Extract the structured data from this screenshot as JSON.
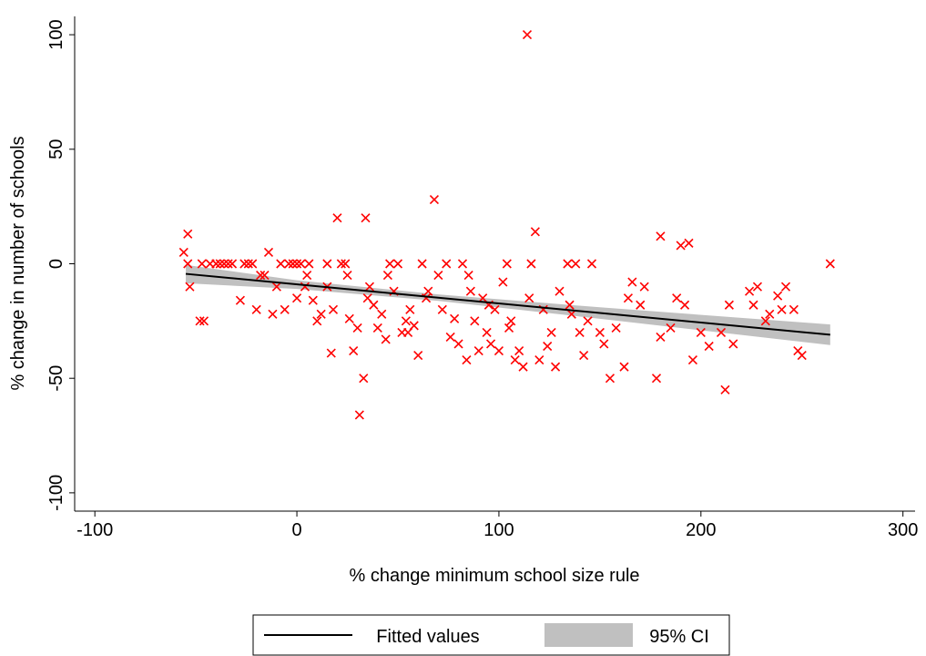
{
  "chart_data": {
    "type": "scatter",
    "x_label": "% change minimum school size rule",
    "y_label": "% change in number of schools",
    "xlim": [
      -110,
      306
    ],
    "ylim": [
      -108,
      108
    ],
    "xticks": [
      -100,
      0,
      100,
      200,
      300
    ],
    "yticks": [
      -100,
      -50,
      0,
      50,
      100
    ],
    "grid": false,
    "legend": "bottom",
    "color": "#ff0000",
    "x": [
      -56,
      -54,
      -54,
      -53,
      -48,
      -46,
      -47,
      -43,
      -40,
      -38,
      -36,
      -34,
      -32,
      -28,
      -26,
      -24,
      -22,
      -20,
      -18,
      -16,
      -14,
      -12,
      -10,
      -8,
      -6,
      -4,
      -2,
      0,
      2,
      4,
      6,
      8,
      10,
      12,
      15,
      17,
      18,
      20,
      22,
      24,
      26,
      28,
      30,
      31,
      33,
      34,
      35,
      36,
      38,
      40,
      42,
      44,
      46,
      48,
      50,
      52,
      54,
      56,
      58,
      60,
      62,
      64,
      68,
      70,
      72,
      74,
      76,
      78,
      80,
      82,
      84,
      86,
      88,
      90,
      92,
      94,
      96,
      98,
      100,
      102,
      104,
      106,
      108,
      110,
      112,
      114,
      116,
      118,
      120,
      122,
      124,
      126,
      128,
      130,
      134,
      136,
      138,
      140,
      142,
      144,
      146,
      150,
      152,
      155,
      158,
      162,
      164,
      166,
      170,
      172,
      178,
      180,
      180,
      185,
      188,
      190,
      192,
      194,
      196,
      200,
      204,
      210,
      212,
      214,
      216,
      224,
      226,
      228,
      232,
      234,
      238,
      240,
      242,
      246,
      248,
      250,
      264,
      0,
      5,
      15,
      25,
      45,
      55,
      65,
      85,
      95,
      105,
      115,
      135
    ],
    "values": [
      5,
      13,
      0,
      -10,
      -25,
      -25,
      0,
      0,
      0,
      0,
      0,
      0,
      0,
      -16,
      0,
      0,
      0,
      -20,
      -5,
      -5,
      5,
      -22,
      -10,
      0,
      -20,
      0,
      0,
      0,
      0,
      -10,
      0,
      -16,
      -25,
      -22,
      0,
      -39,
      -20,
      20,
      0,
      0,
      -24,
      -38,
      -28,
      -66,
      -50,
      20,
      -15,
      -10,
      -18,
      -28,
      -22,
      -33,
      0,
      -12,
      0,
      -30,
      -25,
      -20,
      -27,
      -40,
      0,
      -15,
      28,
      -5,
      -20,
      0,
      -32,
      -24,
      -35,
      0,
      -42,
      -12,
      -25,
      -38,
      -15,
      -30,
      -35,
      -20,
      -38,
      -8,
      0,
      -25,
      -42,
      -38,
      -45,
      100,
      0,
      14,
      -42,
      -20,
      -36,
      -30,
      -45,
      -12,
      0,
      -22,
      0,
      -30,
      -40,
      -25,
      0,
      -30,
      -35,
      -50,
      -28,
      -45,
      -15,
      -8,
      -18,
      -10,
      -50,
      12,
      -32,
      -28,
      -15,
      8,
      -18,
      9,
      -42,
      -30,
      -36,
      -30,
      -55,
      -18,
      -35,
      -12,
      -18,
      -10,
      -25,
      -22,
      -14,
      -20,
      -10,
      -20,
      -38,
      -40,
      0,
      -15,
      -5,
      -10,
      -5,
      -5,
      -30,
      -12,
      -5,
      -18,
      -28,
      -15,
      -18
    ],
    "fit": {
      "name": "Fitted values",
      "color": "#000000",
      "x": [
        -55,
        264
      ],
      "values": [
        -4.4,
        -31.0
      ]
    },
    "ci": {
      "name": "95% CI",
      "color": "#c0c0c0",
      "x": [
        -55,
        0,
        70,
        150,
        264
      ],
      "lower": [
        -8.5,
        -11,
        -16.2,
        -24,
        -35.5
      ],
      "upper": [
        -0.5,
        -7.2,
        -13.4,
        -19,
        -26.5
      ]
    }
  }
}
